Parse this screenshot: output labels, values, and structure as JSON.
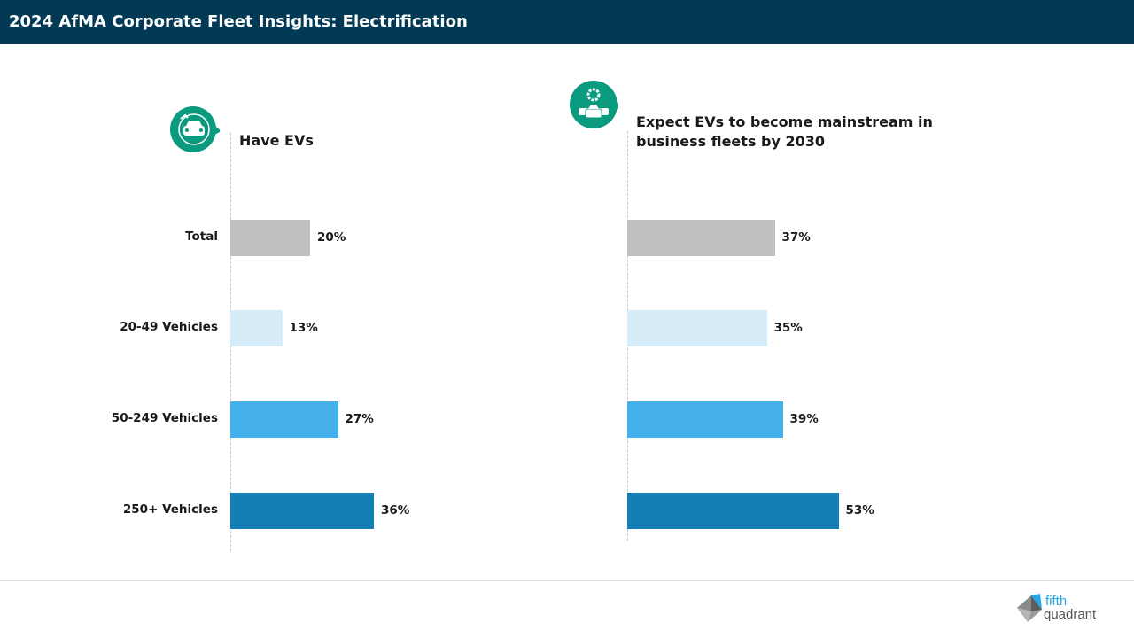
{
  "header": {
    "title": "2024 AfMA Corporate Fleet Insights: Electrification"
  },
  "colors": {
    "header": "#023a56",
    "icon": "#0a9a7d",
    "Total": "#bfbfbf",
    "20-49 Vehicles": "#d6ecf8",
    "50-249 Vehicles": "#45b1ea",
    "250+ Vehicles": "#137fb6"
  },
  "chart_data": [
    {
      "type": "bar",
      "orientation": "horizontal",
      "title": "Have EVs",
      "icon": "electric-car-icon",
      "categories": [
        "Total",
        "20-49 Vehicles",
        "50-249 Vehicles",
        "250+ Vehicles"
      ],
      "values": [
        20,
        13,
        27,
        36
      ],
      "labels": [
        "20%",
        "13%",
        "27%",
        "36%"
      ],
      "unit": "%",
      "grid": false
    },
    {
      "type": "bar",
      "orientation": "horizontal",
      "title": "Expect EVs to become mainstream in business fleets by 2030",
      "icon": "fleet-gear-icon",
      "categories": [
        "Total",
        "20-49 Vehicles",
        "50-249 Vehicles",
        "250+ Vehicles"
      ],
      "values": [
        37,
        35,
        39,
        53
      ],
      "labels": [
        "37%",
        "35%",
        "39%",
        "53%"
      ],
      "unit": "%",
      "grid": false
    }
  ],
  "logo": {
    "text": "fifth quadrant",
    "line1": "fifth",
    "line2": "quadrant"
  }
}
